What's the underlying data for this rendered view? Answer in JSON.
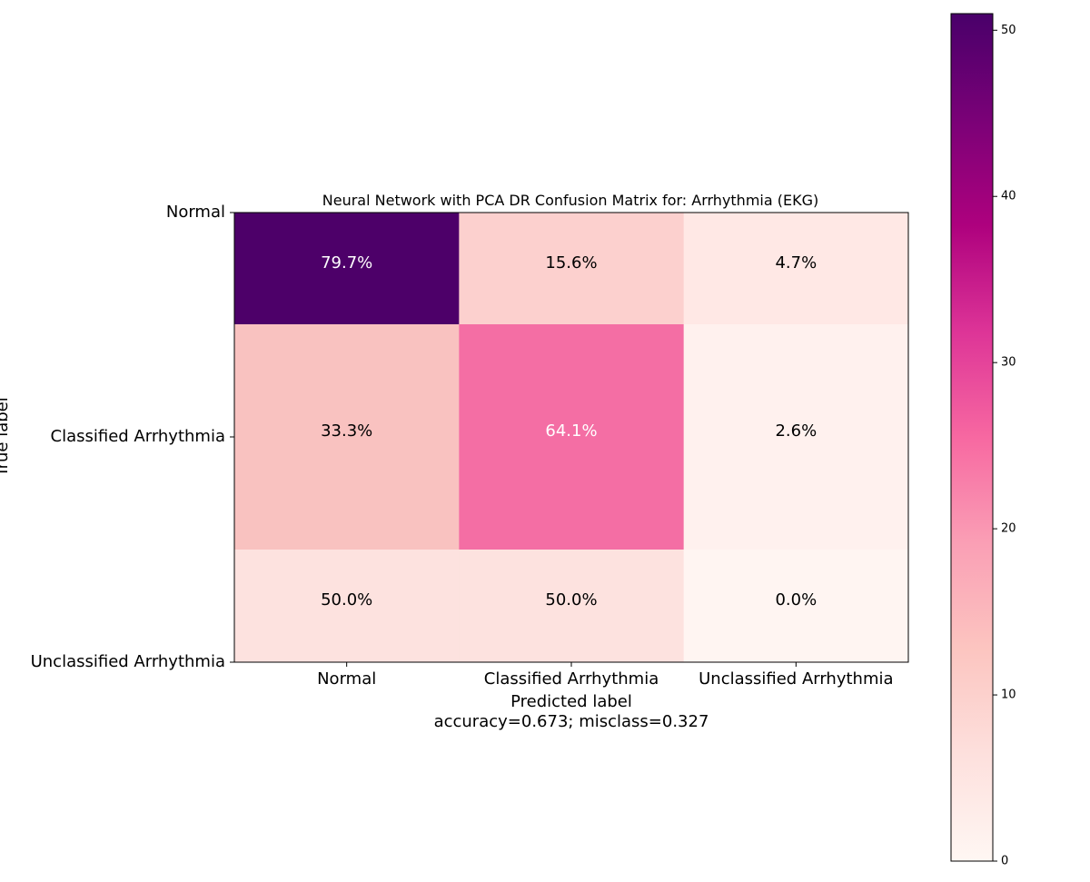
{
  "chart_data": {
    "type": "heatmap",
    "title": "Neural Network with PCA DR Confusion Matrix for: Arrhythmia (EKG)",
    "xlabel": "Predicted label",
    "xlabel_note": "accuracy=0.673; misclass=0.327",
    "ylabel": "True label",
    "x_categories": [
      "Normal",
      "Classified Arrhythmia",
      "Unclassified Arrhythmia"
    ],
    "y_categories": [
      "Normal",
      "Classified Arrhythmia",
      "Unclassified Arrhythmia"
    ],
    "cell_labels": [
      [
        "79.7%",
        "15.6%",
        "4.7%"
      ],
      [
        "33.3%",
        "64.1%",
        "2.6%"
      ],
      [
        "50.0%",
        "50.0%",
        "0.0%"
      ]
    ],
    "cell_colors": [
      [
        "#4d0069",
        "#fcd0ce",
        "#ffe8e5"
      ],
      [
        "#f9c2c0",
        "#f46ea4",
        "#fff1ee"
      ],
      [
        "#fde2df",
        "#fde2df",
        "#fff5f2"
      ]
    ],
    "cell_text_colors": [
      [
        "#ffffff",
        "#000000",
        "#000000"
      ],
      [
        "#000000",
        "#ffffff",
        "#000000"
      ],
      [
        "#000000",
        "#000000",
        "#000000"
      ]
    ],
    "colorbar": {
      "range": [
        0,
        51
      ],
      "ticks": [
        0,
        10,
        20,
        30,
        40,
        50
      ],
      "colormap": "RdPu",
      "stops": [
        "#fff7f3",
        "#fde0dd",
        "#fcc5c0",
        "#fa9fb5",
        "#f768a1",
        "#dd3497",
        "#ae017e",
        "#7a0177",
        "#49006a"
      ]
    }
  }
}
